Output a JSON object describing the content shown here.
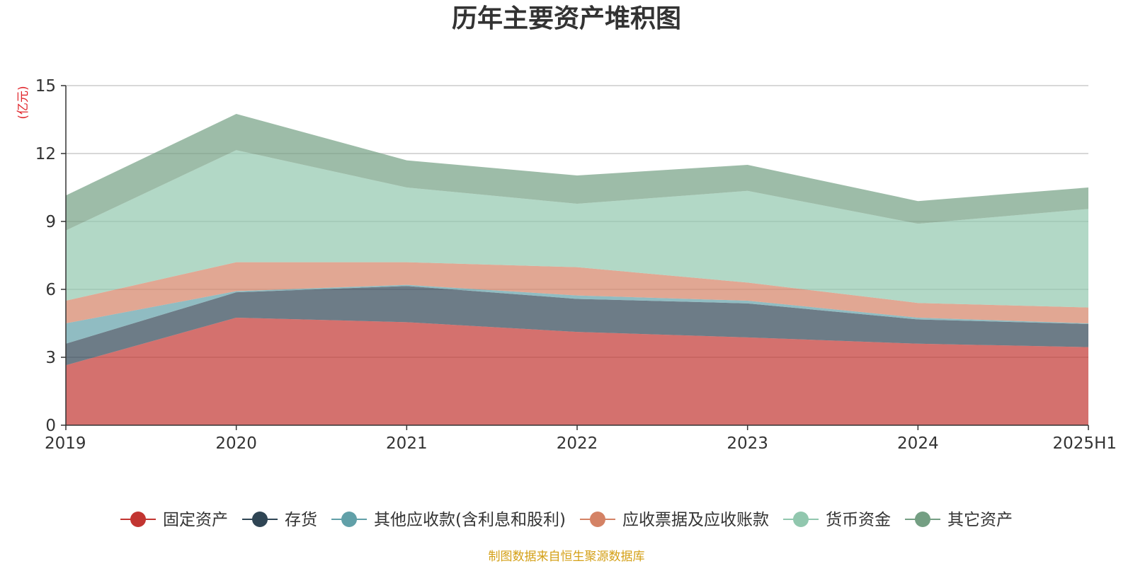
{
  "chart_data": {
    "type": "area",
    "stacked": true,
    "title": "历年主要资产堆积图",
    "unit_label": "(亿元)",
    "categories": [
      "2019",
      "2020",
      "2021",
      "2022",
      "2023",
      "2024",
      "2025H1"
    ],
    "ylim": [
      0,
      15
    ],
    "yticks": [
      0,
      3,
      6,
      9,
      12,
      15
    ],
    "ytick_labels": [
      "0",
      "3",
      "6",
      "9",
      "12",
      "15"
    ],
    "grid": true,
    "legend_position": "bottom",
    "series": [
      {
        "name": "固定资产",
        "color": "#c23531",
        "values": [
          2.65,
          4.75,
          4.55,
          4.12,
          3.88,
          3.6,
          3.45
        ]
      },
      {
        "name": "存货",
        "color": "#2f4554",
        "values": [
          0.95,
          1.12,
          1.6,
          1.46,
          1.5,
          1.07,
          1.02
        ]
      },
      {
        "name": "其他应收款(含利息和股利)",
        "color": "#61a0a8",
        "values": [
          0.9,
          0.05,
          0.05,
          0.15,
          0.12,
          0.08,
          0.03
        ]
      },
      {
        "name": "应收票据及应收账款",
        "color": "#d48265",
        "values": [
          1.0,
          1.28,
          1.0,
          1.25,
          0.8,
          0.65,
          0.7
        ]
      },
      {
        "name": "货币资金",
        "color": "#91c7ae",
        "values": [
          3.1,
          4.95,
          3.3,
          2.8,
          4.05,
          3.5,
          4.35
        ]
      },
      {
        "name": "其它资产",
        "color": "#749f83",
        "values": [
          1.55,
          1.6,
          1.2,
          1.25,
          1.15,
          1.0,
          0.95
        ]
      }
    ],
    "source_note": "制图数据来自恒生聚源数据库",
    "colors": {
      "axis": "#333333",
      "grid": "#cccccc",
      "unit_label": "#e0242a",
      "source_note": "#d4a017"
    }
  }
}
